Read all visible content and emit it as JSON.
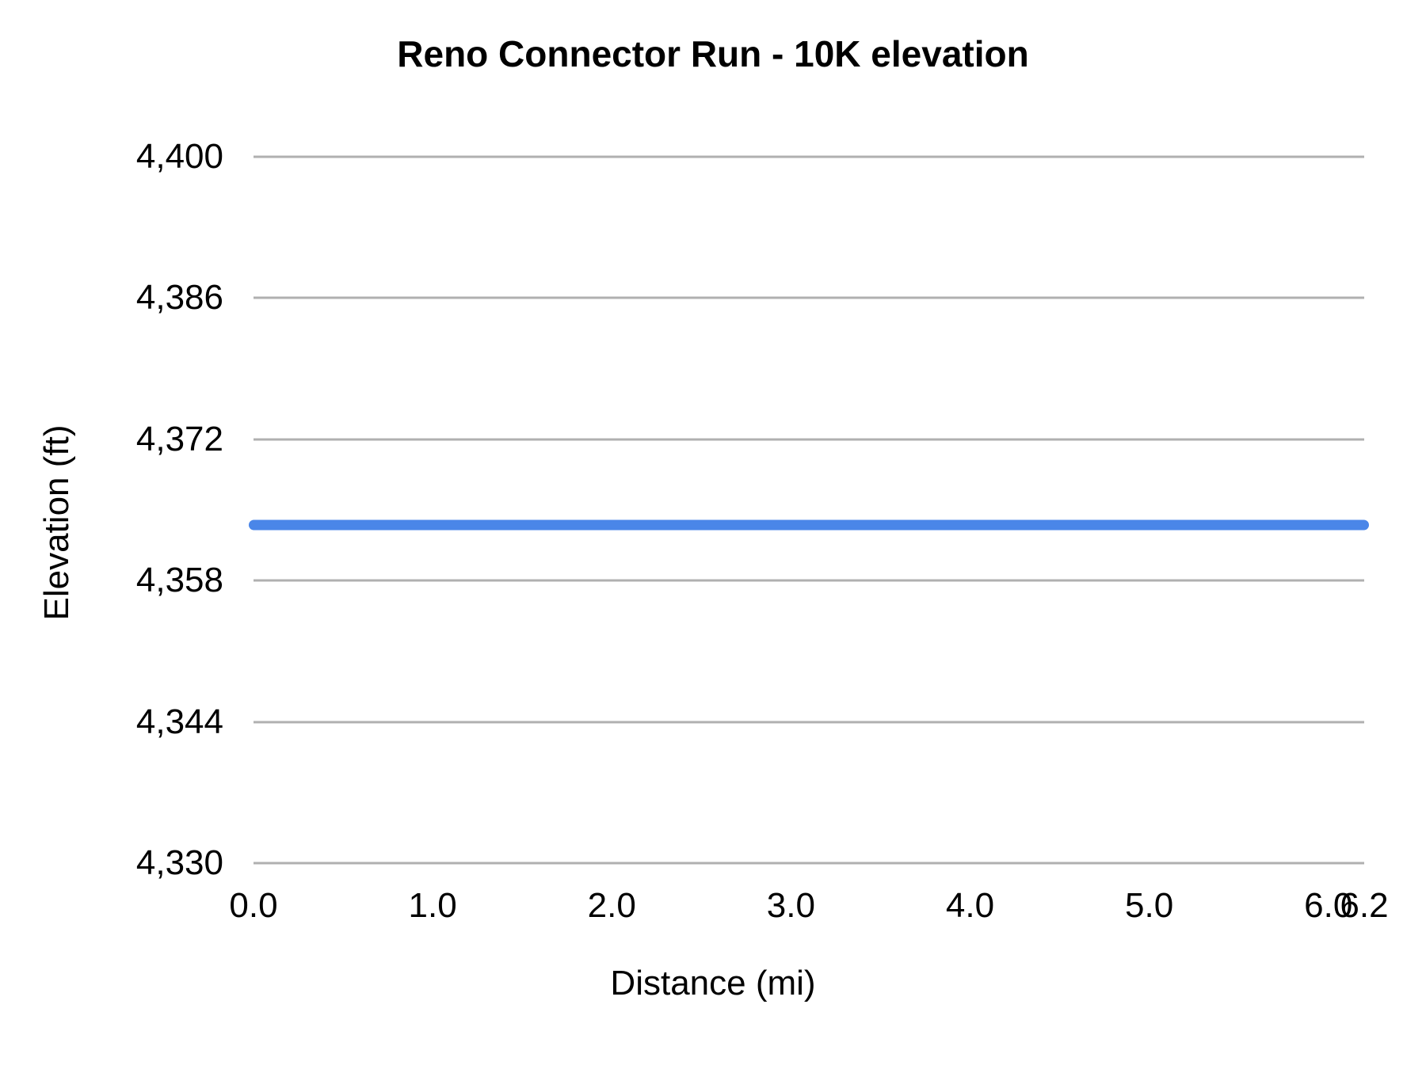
{
  "chart_data": {
    "type": "line",
    "title": "Reno Connector Run - 10K elevation",
    "xlabel": "Distance (mi)",
    "ylabel": "Elevation (ft)",
    "xlim": [
      0,
      6.2
    ],
    "ylim": [
      4330,
      4400
    ],
    "grid": "horizontal-only",
    "legend": "none",
    "x_ticks": [
      {
        "value": 0.0,
        "label": "0.0"
      },
      {
        "value": 1.0,
        "label": "1.0"
      },
      {
        "value": 2.0,
        "label": "2.0"
      },
      {
        "value": 3.0,
        "label": "3.0"
      },
      {
        "value": 4.0,
        "label": "4.0"
      },
      {
        "value": 5.0,
        "label": "5.0"
      },
      {
        "value": 6.0,
        "label": "6.0"
      },
      {
        "value": 6.2,
        "label": "6.2"
      }
    ],
    "y_ticks": [
      {
        "value": 4400,
        "label": "4,400"
      },
      {
        "value": 4386,
        "label": "4,386"
      },
      {
        "value": 4372,
        "label": "4,372"
      },
      {
        "value": 4358,
        "label": "4,358"
      },
      {
        "value": 4344,
        "label": "4,344"
      },
      {
        "value": 4330,
        "label": "4,330"
      }
    ],
    "series": [
      {
        "name": "Elevation",
        "color": "#4a86e8",
        "constant_value": 4363.5,
        "x": [
          0.0,
          6.2
        ],
        "y": [
          4363.5,
          4363.5
        ],
        "shape": "flat horizontal line spanning full distance range with rounded caps"
      }
    ]
  },
  "colors": {
    "line": "#4a86e8",
    "gridline": "#b0b0b0",
    "text": "#000000",
    "background": "#ffffff"
  }
}
